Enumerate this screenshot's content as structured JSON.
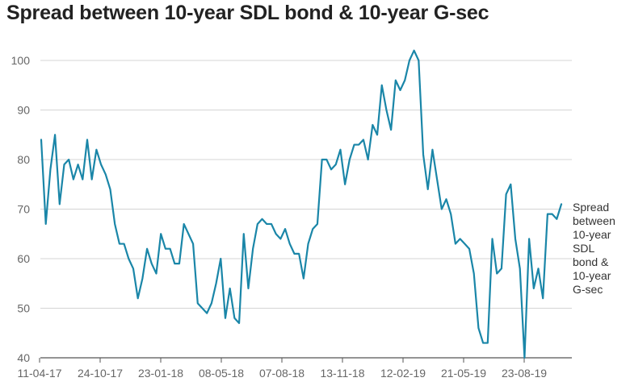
{
  "chart_data": {
    "type": "line",
    "title": "Spread between 10-year SDL bond & 10-year G-sec",
    "xlabel": "",
    "ylabel": "",
    "ylim": [
      40,
      102
    ],
    "yticks": [
      40,
      50,
      60,
      70,
      80,
      90,
      100
    ],
    "xtick_labels": [
      "11-04-17",
      "24-10-17",
      "23-01-18",
      "08-05-18",
      "07-08-18",
      "13-11-18",
      "12-02-19",
      "21-05-19",
      "23-08-19"
    ],
    "grid": "horizontal",
    "legend": "none",
    "series": [
      {
        "name": "Spread between 10-year SDL bond & 10-year G-sec",
        "label_lines": [
          "Spread",
          "between",
          "10-year",
          "SDL",
          "bond &",
          "10-year",
          "G-sec"
        ],
        "color": "#1a86a8",
        "values": [
          84,
          67,
          78,
          85,
          71,
          79,
          80,
          76,
          79,
          76,
          84,
          76,
          82,
          79,
          77,
          74,
          67,
          63,
          63,
          60,
          58,
          52,
          56,
          62,
          59,
          57,
          65,
          62,
          62,
          59,
          59,
          67,
          65,
          63,
          51,
          50,
          49,
          51,
          55,
          60,
          48,
          54,
          48,
          47,
          65,
          54,
          62,
          67,
          68,
          67,
          67,
          65,
          64,
          66,
          63,
          61,
          61,
          56,
          63,
          66,
          67,
          80,
          80,
          78,
          79,
          82,
          75,
          80,
          83,
          83,
          84,
          80,
          87,
          85,
          95,
          90,
          86,
          96,
          94,
          96,
          100,
          102,
          100,
          81,
          74,
          82,
          76,
          70,
          72,
          69,
          63,
          64,
          63,
          62,
          57,
          46,
          43,
          43,
          64,
          57,
          58,
          73,
          75,
          64,
          58,
          40,
          64,
          54,
          58,
          52,
          69,
          69,
          68,
          71
        ]
      }
    ]
  }
}
